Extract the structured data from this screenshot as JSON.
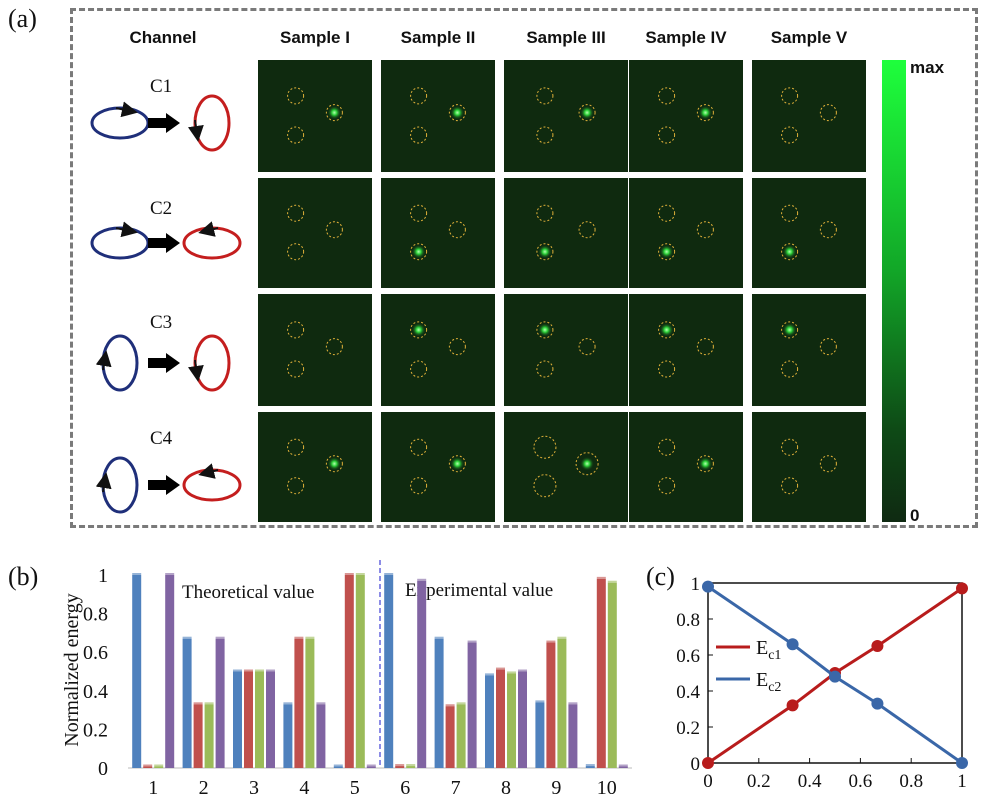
{
  "panel_a": {
    "label": "(a)",
    "column_headers": [
      "Channel",
      "Sample I",
      "Sample II",
      "Sample III",
      "Sample IV",
      "Sample V"
    ],
    "channels": [
      "C1",
      "C2",
      "C3",
      "C4"
    ],
    "colorbar": {
      "max_label": "max",
      "min_label": "0",
      "colors": [
        "#1eff3c",
        "#0f2a12"
      ]
    },
    "spot_positions": [
      "right",
      "lower-left",
      "upper-left"
    ],
    "bright_spot": [
      [
        "right",
        "right",
        "right",
        "right",
        "none"
      ],
      [
        "none",
        "lower-left",
        "lower-left",
        "lower-left",
        "lower-left"
      ],
      [
        "none",
        "upper-left",
        "upper-left",
        "upper-left",
        "upper-left"
      ],
      [
        "right",
        "right",
        "right",
        "right",
        "none"
      ]
    ]
  },
  "panel_b": {
    "label": "(b)",
    "theoretical_label": "Theoretical value",
    "experimental_label": "Experimental value",
    "colors": {
      "blue": "#4f81bd",
      "red": "#c0504d",
      "green": "#9bbb59",
      "purple": "#8064a2",
      "divider": "#6666dd"
    }
  },
  "panel_c": {
    "label": "(c)",
    "colors": {
      "Ec1": "#b81c1c",
      "Ec2": "#3a67a8"
    }
  },
  "chart_data": [
    {
      "type": "bar",
      "ylabel": "Normalized energy",
      "categories": [
        "1",
        "2",
        "3",
        "4",
        "5",
        "6",
        "7",
        "8",
        "9",
        "10"
      ],
      "ylim": [
        0,
        1
      ],
      "yticks": [
        "0",
        "0.2",
        "0.4",
        "0.6",
        "0.8",
        "1"
      ],
      "series": [
        {
          "values": [
            1.0,
            0.67,
            0.5,
            0.33,
            0.0,
            1.0,
            0.67,
            0.48,
            0.34,
            0.01
          ]
        },
        {
          "values": [
            0.0,
            0.33,
            0.5,
            0.67,
            1.0,
            0.01,
            0.32,
            0.51,
            0.65,
            0.98
          ]
        },
        {
          "values": [
            0.0,
            0.33,
            0.5,
            0.67,
            1.0,
            0.01,
            0.33,
            0.49,
            0.67,
            0.96
          ]
        },
        {
          "values": [
            1.0,
            0.67,
            0.5,
            0.33,
            0.0,
            0.97,
            0.65,
            0.5,
            0.33,
            0.0
          ]
        }
      ]
    },
    {
      "type": "line",
      "xlim": [
        0,
        1
      ],
      "ylim": [
        0,
        1
      ],
      "xticks": [
        "0",
        "0.2",
        "0.4",
        "0.6",
        "0.8",
        "1"
      ],
      "yticks": [
        "0",
        "0.2",
        "0.4",
        "0.6",
        "0.8",
        "1"
      ],
      "legend": "center-left",
      "series": [
        {
          "name": "Ec1",
          "x": [
            0,
            0.333,
            0.5,
            0.667,
            1
          ],
          "y": [
            0,
            0.32,
            0.5,
            0.65,
            0.97
          ]
        },
        {
          "name": "Ec2",
          "x": [
            0,
            0.333,
            0.5,
            0.667,
            1
          ],
          "y": [
            0.98,
            0.66,
            0.48,
            0.33,
            0
          ]
        }
      ]
    }
  ]
}
